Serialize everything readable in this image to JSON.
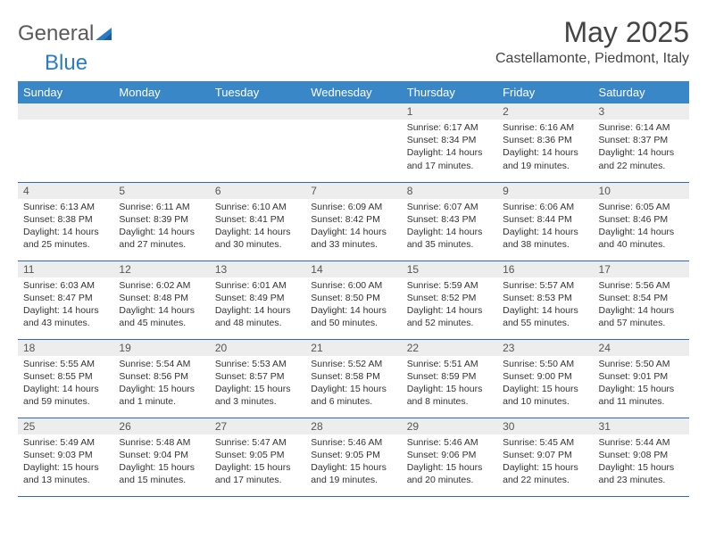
{
  "logo": {
    "text_a": "General",
    "text_b": "Blue"
  },
  "month_title": "May 2025",
  "location": "Castellamonte, Piedmont, Italy",
  "colors": {
    "header_bg": "#3a87c8",
    "header_text": "#ffffff",
    "daynum_bg": "#ededed",
    "border": "#2f6da3",
    "logo_gray": "#5a5a5a",
    "logo_blue": "#2a7cc2",
    "text": "#333333"
  },
  "day_headers": [
    "Sunday",
    "Monday",
    "Tuesday",
    "Wednesday",
    "Thursday",
    "Friday",
    "Saturday"
  ],
  "weeks": [
    [
      {
        "n": "",
        "rise": "",
        "set": "",
        "day": ""
      },
      {
        "n": "",
        "rise": "",
        "set": "",
        "day": ""
      },
      {
        "n": "",
        "rise": "",
        "set": "",
        "day": ""
      },
      {
        "n": "",
        "rise": "",
        "set": "",
        "day": ""
      },
      {
        "n": "1",
        "rise": "Sunrise: 6:17 AM",
        "set": "Sunset: 8:34 PM",
        "day": "Daylight: 14 hours and 17 minutes."
      },
      {
        "n": "2",
        "rise": "Sunrise: 6:16 AM",
        "set": "Sunset: 8:36 PM",
        "day": "Daylight: 14 hours and 19 minutes."
      },
      {
        "n": "3",
        "rise": "Sunrise: 6:14 AM",
        "set": "Sunset: 8:37 PM",
        "day": "Daylight: 14 hours and 22 minutes."
      }
    ],
    [
      {
        "n": "4",
        "rise": "Sunrise: 6:13 AM",
        "set": "Sunset: 8:38 PM",
        "day": "Daylight: 14 hours and 25 minutes."
      },
      {
        "n": "5",
        "rise": "Sunrise: 6:11 AM",
        "set": "Sunset: 8:39 PM",
        "day": "Daylight: 14 hours and 27 minutes."
      },
      {
        "n": "6",
        "rise": "Sunrise: 6:10 AM",
        "set": "Sunset: 8:41 PM",
        "day": "Daylight: 14 hours and 30 minutes."
      },
      {
        "n": "7",
        "rise": "Sunrise: 6:09 AM",
        "set": "Sunset: 8:42 PM",
        "day": "Daylight: 14 hours and 33 minutes."
      },
      {
        "n": "8",
        "rise": "Sunrise: 6:07 AM",
        "set": "Sunset: 8:43 PM",
        "day": "Daylight: 14 hours and 35 minutes."
      },
      {
        "n": "9",
        "rise": "Sunrise: 6:06 AM",
        "set": "Sunset: 8:44 PM",
        "day": "Daylight: 14 hours and 38 minutes."
      },
      {
        "n": "10",
        "rise": "Sunrise: 6:05 AM",
        "set": "Sunset: 8:46 PM",
        "day": "Daylight: 14 hours and 40 minutes."
      }
    ],
    [
      {
        "n": "11",
        "rise": "Sunrise: 6:03 AM",
        "set": "Sunset: 8:47 PM",
        "day": "Daylight: 14 hours and 43 minutes."
      },
      {
        "n": "12",
        "rise": "Sunrise: 6:02 AM",
        "set": "Sunset: 8:48 PM",
        "day": "Daylight: 14 hours and 45 minutes."
      },
      {
        "n": "13",
        "rise": "Sunrise: 6:01 AM",
        "set": "Sunset: 8:49 PM",
        "day": "Daylight: 14 hours and 48 minutes."
      },
      {
        "n": "14",
        "rise": "Sunrise: 6:00 AM",
        "set": "Sunset: 8:50 PM",
        "day": "Daylight: 14 hours and 50 minutes."
      },
      {
        "n": "15",
        "rise": "Sunrise: 5:59 AM",
        "set": "Sunset: 8:52 PM",
        "day": "Daylight: 14 hours and 52 minutes."
      },
      {
        "n": "16",
        "rise": "Sunrise: 5:57 AM",
        "set": "Sunset: 8:53 PM",
        "day": "Daylight: 14 hours and 55 minutes."
      },
      {
        "n": "17",
        "rise": "Sunrise: 5:56 AM",
        "set": "Sunset: 8:54 PM",
        "day": "Daylight: 14 hours and 57 minutes."
      }
    ],
    [
      {
        "n": "18",
        "rise": "Sunrise: 5:55 AM",
        "set": "Sunset: 8:55 PM",
        "day": "Daylight: 14 hours and 59 minutes."
      },
      {
        "n": "19",
        "rise": "Sunrise: 5:54 AM",
        "set": "Sunset: 8:56 PM",
        "day": "Daylight: 15 hours and 1 minute."
      },
      {
        "n": "20",
        "rise": "Sunrise: 5:53 AM",
        "set": "Sunset: 8:57 PM",
        "day": "Daylight: 15 hours and 3 minutes."
      },
      {
        "n": "21",
        "rise": "Sunrise: 5:52 AM",
        "set": "Sunset: 8:58 PM",
        "day": "Daylight: 15 hours and 6 minutes."
      },
      {
        "n": "22",
        "rise": "Sunrise: 5:51 AM",
        "set": "Sunset: 8:59 PM",
        "day": "Daylight: 15 hours and 8 minutes."
      },
      {
        "n": "23",
        "rise": "Sunrise: 5:50 AM",
        "set": "Sunset: 9:00 PM",
        "day": "Daylight: 15 hours and 10 minutes."
      },
      {
        "n": "24",
        "rise": "Sunrise: 5:50 AM",
        "set": "Sunset: 9:01 PM",
        "day": "Daylight: 15 hours and 11 minutes."
      }
    ],
    [
      {
        "n": "25",
        "rise": "Sunrise: 5:49 AM",
        "set": "Sunset: 9:03 PM",
        "day": "Daylight: 15 hours and 13 minutes."
      },
      {
        "n": "26",
        "rise": "Sunrise: 5:48 AM",
        "set": "Sunset: 9:04 PM",
        "day": "Daylight: 15 hours and 15 minutes."
      },
      {
        "n": "27",
        "rise": "Sunrise: 5:47 AM",
        "set": "Sunset: 9:05 PM",
        "day": "Daylight: 15 hours and 17 minutes."
      },
      {
        "n": "28",
        "rise": "Sunrise: 5:46 AM",
        "set": "Sunset: 9:05 PM",
        "day": "Daylight: 15 hours and 19 minutes."
      },
      {
        "n": "29",
        "rise": "Sunrise: 5:46 AM",
        "set": "Sunset: 9:06 PM",
        "day": "Daylight: 15 hours and 20 minutes."
      },
      {
        "n": "30",
        "rise": "Sunrise: 5:45 AM",
        "set": "Sunset: 9:07 PM",
        "day": "Daylight: 15 hours and 22 minutes."
      },
      {
        "n": "31",
        "rise": "Sunrise: 5:44 AM",
        "set": "Sunset: 9:08 PM",
        "day": "Daylight: 15 hours and 23 minutes."
      }
    ]
  ]
}
